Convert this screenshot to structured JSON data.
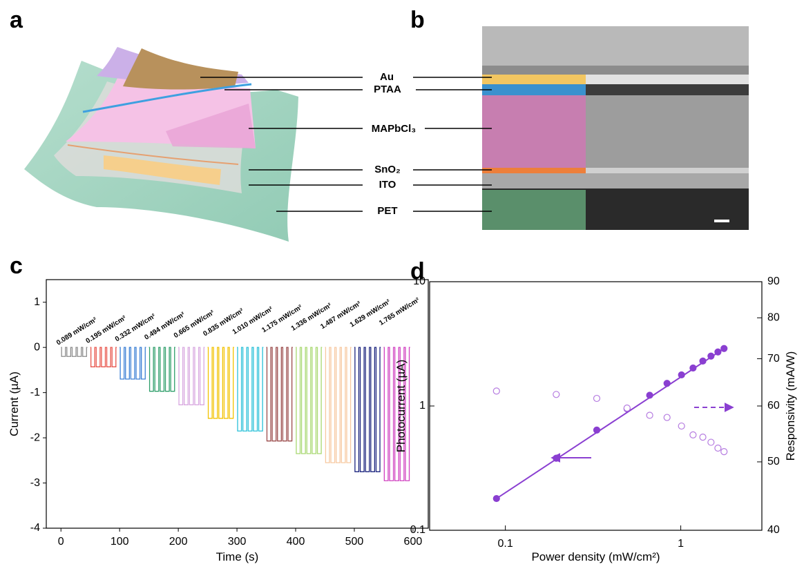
{
  "panel_labels": [
    "a",
    "b",
    "c",
    "d"
  ],
  "layers": [
    "Au",
    "PTAA",
    "MAPbCl₃",
    "SnO₂",
    "ITO",
    "PET"
  ],
  "chart_data": [
    {
      "type": "pulse",
      "x_label": "Time (s)",
      "y_label": "Current (µA)",
      "xlim": [
        -25,
        626
      ],
      "ylim": [
        -4,
        1.5
      ],
      "xticks": [
        0,
        100,
        200,
        300,
        400,
        500,
        600
      ],
      "yticks": [
        -4,
        -3,
        -2,
        -1,
        0,
        1
      ],
      "series": [
        {
          "name": "0.089 mW/cm²",
          "color": "#8c8c8c",
          "time_range": [
            0,
            45
          ],
          "values": [
            -0.2,
            -0.2,
            -0.2,
            -0.2,
            -0.2
          ]
        },
        {
          "name": "0.195 mW/cm²",
          "color": "#e8534a",
          "time_range": [
            50,
            95
          ],
          "values": [
            -0.43,
            -0.43,
            -0.43,
            -0.43,
            -0.43
          ]
        },
        {
          "name": "0.332 mW/cm²",
          "color": "#3a7fd5",
          "time_range": [
            100,
            145
          ],
          "values": [
            -0.7,
            -0.7,
            -0.7,
            -0.7,
            -0.7
          ]
        },
        {
          "name": "0.494 mW/cm²",
          "color": "#2e9e6a",
          "time_range": [
            150,
            195
          ],
          "values": [
            -0.97,
            -0.97,
            -0.97,
            -0.97,
            -0.97
          ]
        },
        {
          "name": "0.665 mW/cm²",
          "color": "#d8a8e0",
          "time_range": [
            200,
            245
          ],
          "values": [
            -1.27,
            -1.27,
            -1.27,
            -1.27,
            -1.27
          ]
        },
        {
          "name": "0.835 mW/cm²",
          "color": "#f2c200",
          "time_range": [
            250,
            295
          ],
          "values": [
            -1.57,
            -1.57,
            -1.57,
            -1.57,
            -1.57
          ]
        },
        {
          "name": "1.010 mW/cm²",
          "color": "#29c0d8",
          "time_range": [
            300,
            345
          ],
          "values": [
            -1.85,
            -1.85,
            -1.85,
            -1.85,
            -1.85
          ]
        },
        {
          "name": "1.175 mW/cm²",
          "color": "#9a4a4a",
          "time_range": [
            350,
            395
          ],
          "values": [
            -2.07,
            -2.07,
            -2.07,
            -2.07,
            -2.07
          ]
        },
        {
          "name": "1.336 mW/cm²",
          "color": "#a8d870",
          "time_range": [
            400,
            445
          ],
          "values": [
            -2.35,
            -2.35,
            -2.35,
            -2.35,
            -2.35
          ]
        },
        {
          "name": "1.487 mW/cm²",
          "color": "#f7c8a0",
          "time_range": [
            450,
            495
          ],
          "values": [
            -2.55,
            -2.55,
            -2.55,
            -2.55,
            -2.55
          ]
        },
        {
          "name": "1.629 mW/cm²",
          "color": "#1a237e",
          "time_range": [
            500,
            545
          ],
          "values": [
            -2.75,
            -2.75,
            -2.75,
            -2.75,
            -2.75
          ]
        },
        {
          "name": "1.765 mW/cm²",
          "color": "#d040c0",
          "time_range": [
            550,
            595
          ],
          "values": [
            -2.95,
            -2.95,
            -2.95,
            -2.95,
            -2.95
          ]
        }
      ]
    },
    {
      "type": "scatter",
      "x_label": "Power density (mW/cm²)",
      "y_label": "Photocurrent (µA)",
      "y2_label": "Responsivity (mA/W)",
      "xscale": "log",
      "yscale": "log",
      "y2scale": "log",
      "fit_line": true,
      "xlim": [
        0.037,
        2.9
      ],
      "ylim": [
        0.1,
        10
      ],
      "y2lim": [
        40,
        90
      ],
      "xticks": [
        0.1,
        1
      ],
      "yticks": [
        0.1,
        1,
        10
      ],
      "y2ticks": [
        40,
        50,
        60,
        70,
        80,
        90
      ],
      "x": [
        0.089,
        0.195,
        0.332,
        0.494,
        0.665,
        0.835,
        1.01,
        1.175,
        1.336,
        1.487,
        1.629,
        1.765
      ],
      "series": [
        {
          "color": "#8a3fd1",
          "marker": "filled",
          "values": [
            0.18,
            0.38,
            0.64,
            0.95,
            1.22,
            1.52,
            1.78,
            2.02,
            2.3,
            2.52,
            2.72,
            2.9
          ]
        },
        {
          "color": "#b57be0",
          "marker": "open",
          "axis": "y2",
          "values": [
            63,
            62.3,
            61.5,
            59.6,
            58.2,
            57.8,
            56.2,
            54.6,
            54.2,
            53.3,
            52.3,
            51.7
          ]
        }
      ]
    }
  ]
}
